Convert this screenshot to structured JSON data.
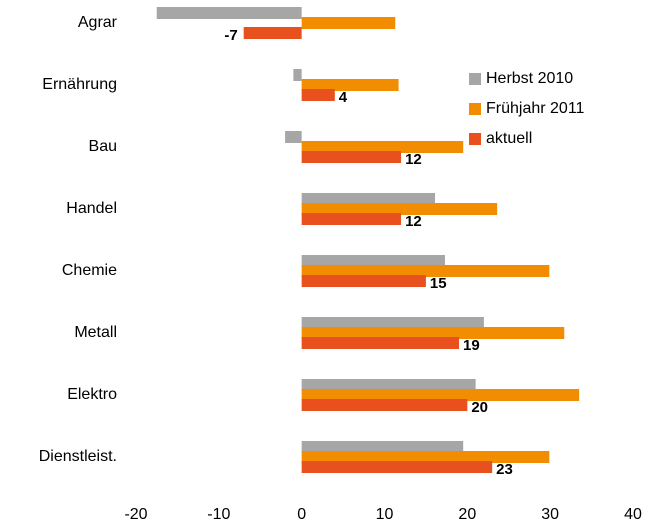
{
  "chart_data": {
    "type": "bar",
    "orientation": "horizontal",
    "categories": [
      "Agrar",
      "Ernährung",
      "Bau",
      "Handel",
      "Chemie",
      "Metall",
      "Elektro",
      "Dienstleist."
    ],
    "series": [
      {
        "name": "Herbst 2010",
        "color": "#a6a6a6",
        "values": [
          -17.5,
          -1,
          -2,
          16.1,
          17.3,
          22,
          21,
          19.5
        ]
      },
      {
        "name": "Frühjahr 2011",
        "color": "#f28c00",
        "values": [
          11.3,
          11.7,
          19.5,
          23.6,
          29.9,
          31.7,
          33.5,
          29.9
        ]
      },
      {
        "name": "aktuell",
        "color": "#e8501e",
        "values": [
          -7,
          4,
          12,
          12,
          15,
          19,
          20,
          23
        ],
        "data_labels": true
      }
    ],
    "xlim": [
      -20,
      40
    ],
    "xticks": [
      -20,
      -10,
      0,
      10,
      20,
      30,
      40
    ],
    "grid": false,
    "legend": "upper right"
  }
}
